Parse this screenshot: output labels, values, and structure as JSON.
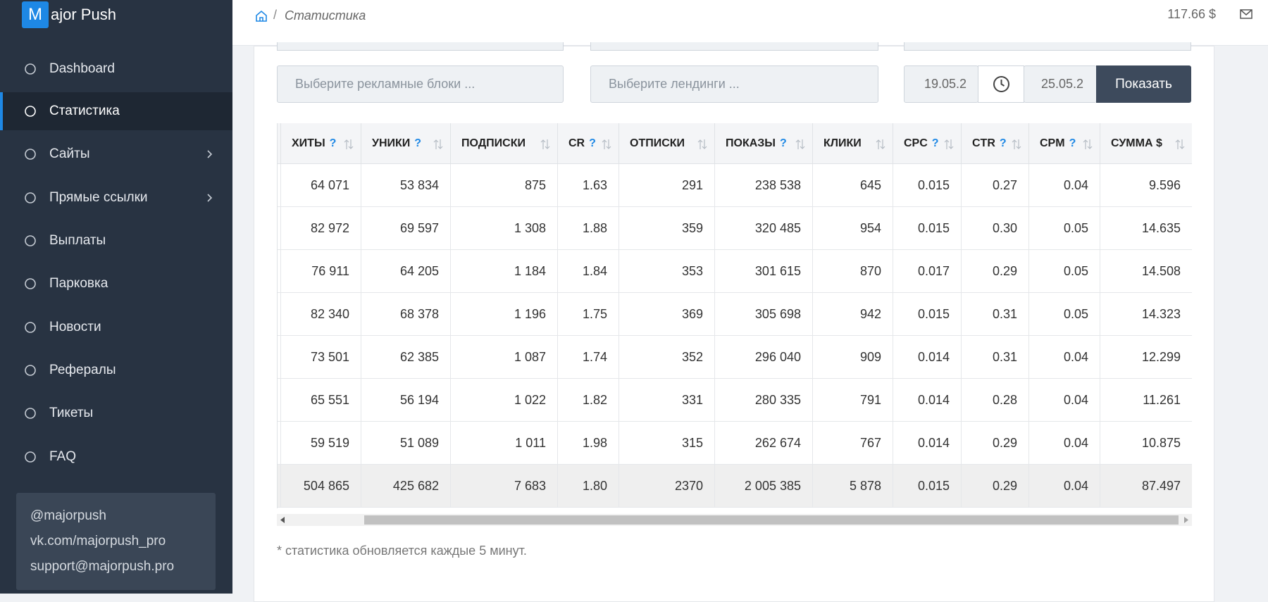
{
  "brand": {
    "letter": "M",
    "name": "ajor Push"
  },
  "nav": [
    {
      "label": "Dashboard"
    },
    {
      "label": "Статистика",
      "active": true
    },
    {
      "label": "Сайты",
      "sub": true
    },
    {
      "label": "Прямые ссылки",
      "sub": true
    },
    {
      "label": "Выплаты"
    },
    {
      "label": "Парковка"
    },
    {
      "label": "Новости"
    },
    {
      "label": "Рефералы"
    },
    {
      "label": "Тикеты"
    },
    {
      "label": "FAQ"
    }
  ],
  "social": [
    "@majorpush",
    "vk.com/majorpush_pro",
    "support@majorpush.pro"
  ],
  "breadcrumb": "Статистика",
  "balance": "117.66 $",
  "filters": {
    "blocks": "Выберите рекламные блоки ...",
    "landings": "Выберите лендинги ...",
    "date_from": "19.05.2",
    "date_to": "25.05.2",
    "button": "Показать"
  },
  "table": {
    "columns": [
      {
        "label": "ХИТЫ",
        "help": "?"
      },
      {
        "label": "УНИКИ",
        "help": "?"
      },
      {
        "label": "ПОДПИСКИ"
      },
      {
        "label": "CR",
        "help": "?"
      },
      {
        "label": "ОТПИСКИ"
      },
      {
        "label": "ПОКАЗЫ",
        "help": "?"
      },
      {
        "label": "КЛИКИ"
      },
      {
        "label": "CPC",
        "help": "?"
      },
      {
        "label": "CTR",
        "help": "?"
      },
      {
        "label": "CPM",
        "help": "?"
      },
      {
        "label": "СУММА $"
      }
    ],
    "rows": [
      [
        "64 071",
        "53 834",
        "875",
        "1.63",
        "291",
        "238 538",
        "645",
        "0.015",
        "0.27",
        "0.04",
        "9.596"
      ],
      [
        "82 972",
        "69 597",
        "1 308",
        "1.88",
        "359",
        "320 485",
        "954",
        "0.015",
        "0.30",
        "0.05",
        "14.635"
      ],
      [
        "76 911",
        "64 205",
        "1 184",
        "1.84",
        "353",
        "301 615",
        "870",
        "0.017",
        "0.29",
        "0.05",
        "14.508"
      ],
      [
        "82 340",
        "68 378",
        "1 196",
        "1.75",
        "369",
        "305 698",
        "942",
        "0.015",
        "0.31",
        "0.05",
        "14.323"
      ],
      [
        "73 501",
        "62 385",
        "1 087",
        "1.74",
        "352",
        "296 040",
        "909",
        "0.014",
        "0.31",
        "0.04",
        "12.299"
      ],
      [
        "65 551",
        "56 194",
        "1 022",
        "1.82",
        "331",
        "280 335",
        "791",
        "0.014",
        "0.28",
        "0.04",
        "11.261"
      ],
      [
        "59 519",
        "51 089",
        "1 011",
        "1.98",
        "315",
        "262 674",
        "767",
        "0.014",
        "0.29",
        "0.04",
        "10.875"
      ]
    ],
    "total": [
      "504 865",
      "425 682",
      "7 683",
      "1.80",
      "2370",
      "2 005 385",
      "5 878",
      "0.015",
      "0.29",
      "0.04",
      "87.497"
    ]
  },
  "footnote": "* статистика обновляется каждые 5 минут."
}
